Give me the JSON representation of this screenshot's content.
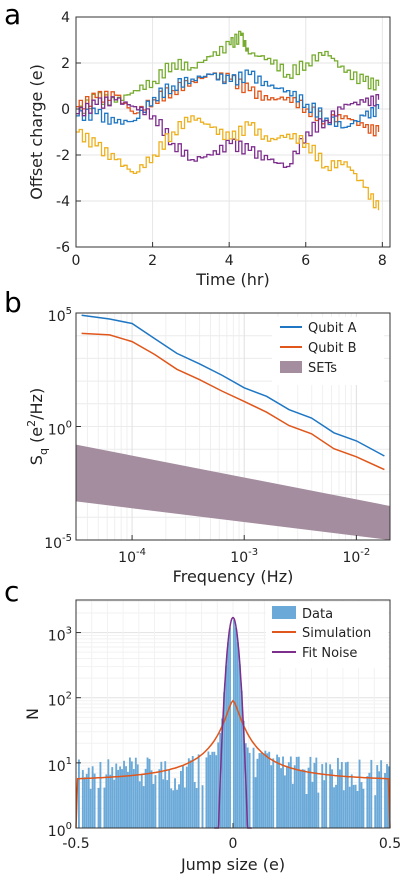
{
  "panel_letters": {
    "a": "a",
    "b": "b",
    "c": "c"
  },
  "colors": {
    "blue": "#1f77c4",
    "orange": "#e0561b",
    "yellow": "#edb120",
    "purple": "#7e2f8e",
    "green": "#77ac30",
    "histogram": "#6aa9d8",
    "sets_band": "#a48d9f"
  },
  "chart_data": [
    {
      "panel": "a",
      "type": "line",
      "xlabel": "Time (hr)",
      "ylabel": "Offset charge (e)",
      "xlim": [
        0,
        8.2
      ],
      "ylim": [
        -6,
        4
      ],
      "xticks": [
        "0",
        "2",
        "4",
        "6",
        "8"
      ],
      "yticks": [
        "4",
        "2",
        "0",
        "-2",
        "-4",
        "-6"
      ],
      "series": [
        {
          "color": "#77ac30",
          "x": [
            0,
            0.5,
            1,
            1.5,
            2,
            2.5,
            3,
            3.5,
            4,
            4.3,
            4.5,
            5,
            5.5,
            6,
            6.5,
            7,
            7.5,
            7.9
          ],
          "y": [
            -0.2,
            0.5,
            0.3,
            0.8,
            1.2,
            2.0,
            1.8,
            2.3,
            2.8,
            3.2,
            2.4,
            2.2,
            1.5,
            2.0,
            2.5,
            1.6,
            1.2,
            1.0
          ]
        },
        {
          "color": "#e0561b",
          "x": [
            0,
            0.5,
            1,
            1.5,
            2,
            2.5,
            3,
            3.5,
            4,
            4.5,
            5,
            5.5,
            6,
            6.5,
            7,
            7.5,
            7.9
          ],
          "y": [
            0.1,
            0.5,
            0.6,
            -0.2,
            0.4,
            0.8,
            1.2,
            1.5,
            1.3,
            0.8,
            0.4,
            0.5,
            0.0,
            -0.5,
            -0.3,
            -0.8,
            -1.0
          ]
        },
        {
          "color": "#1f77c4",
          "x": [
            0,
            0.5,
            1,
            1.5,
            2,
            2.5,
            3,
            3.5,
            4,
            4.5,
            5,
            5.5,
            6,
            6.5,
            7,
            7.5,
            7.9
          ],
          "y": [
            -0.3,
            -0.2,
            -0.6,
            -0.5,
            0.5,
            1.0,
            1.3,
            1.5,
            1.2,
            1.5,
            1.0,
            0.8,
            0.2,
            -0.4,
            -0.8,
            -0.3,
            0.0
          ]
        },
        {
          "color": "#7e2f8e",
          "x": [
            0,
            0.5,
            1,
            1.5,
            2,
            2.5,
            3,
            3.5,
            4,
            4.5,
            5,
            5.5,
            6,
            6.5,
            7,
            7.5,
            7.9
          ],
          "y": [
            -0.2,
            0.2,
            0.4,
            0.1,
            -0.3,
            -1.5,
            -2.2,
            -2.0,
            -1.5,
            -1.8,
            -2.2,
            -2.5,
            -1.0,
            -0.5,
            0.2,
            0.3,
            0.4
          ]
        },
        {
          "color": "#edb120",
          "x": [
            0,
            0.5,
            1,
            1.5,
            2,
            2.5,
            3,
            3.5,
            4,
            4.5,
            5,
            5.5,
            6,
            6.5,
            7,
            7.5,
            7.9
          ],
          "y": [
            -1.0,
            -1.6,
            -2.2,
            -2.8,
            -2.0,
            -1.0,
            -0.3,
            -0.8,
            -1.3,
            -0.7,
            -1.4,
            -1.1,
            -1.5,
            -2.5,
            -2.3,
            -3.4,
            -4.4
          ]
        }
      ]
    },
    {
      "panel": "b",
      "type": "line",
      "xlabel": "Frequency (Hz)",
      "ylabel": "S",
      "ylabel_sub": "q",
      "ylabel_rest_1": " (e",
      "ylabel_sup": "2",
      "ylabel_rest_2": "/Hz)",
      "x_scale": "log",
      "y_scale": "log",
      "xlim_log10": [
        -4.5,
        -1.7
      ],
      "ylim_log10": [
        -5,
        5
      ],
      "xticks": [
        {
          "base": "10",
          "exp": "-4",
          "log": -4
        },
        {
          "base": "10",
          "exp": "-3",
          "log": -3
        },
        {
          "base": "10",
          "exp": "-2",
          "log": -2
        }
      ],
      "yticks": [
        {
          "base": "10",
          "exp": "5",
          "log": 5
        },
        {
          "base": "10",
          "exp": "0",
          "log": 0
        },
        {
          "base": "10",
          "exp": "-5",
          "log": -5
        }
      ],
      "legend": [
        "Qubit A",
        "Qubit B",
        "SETs"
      ],
      "legend_position": "top-right",
      "series": [
        {
          "name": "Qubit A",
          "color": "#1f77c4",
          "log10_x": [
            -4.45,
            -4.2,
            -4.0,
            -3.8,
            -3.6,
            -3.4,
            -3.2,
            -3.0,
            -2.8,
            -2.6,
            -2.4,
            -2.2,
            -2.0,
            -1.75
          ],
          "log10_y": [
            4.9,
            4.7,
            4.6,
            3.8,
            3.3,
            2.7,
            2.3,
            1.7,
            1.3,
            0.8,
            0.3,
            -0.2,
            -0.7,
            -1.3
          ]
        },
        {
          "name": "Qubit B",
          "color": "#e0561b",
          "log10_x": [
            -4.45,
            -4.2,
            -4.0,
            -3.8,
            -3.6,
            -3.4,
            -3.2,
            -3.0,
            -2.8,
            -2.6,
            -2.4,
            -2.2,
            -2.0,
            -1.75
          ],
          "log10_y": [
            4.1,
            4.0,
            3.8,
            3.1,
            2.6,
            2.0,
            1.6,
            1.1,
            0.6,
            0.1,
            -0.4,
            -0.9,
            -1.4,
            -1.9
          ]
        },
        {
          "name": "SETs",
          "type": "band",
          "color": "#a48d9f",
          "log10_x": [
            -4.5,
            -1.7
          ],
          "log10_upper": [
            -0.8,
            -3.5
          ],
          "log10_lower": [
            -3.3,
            -6.2
          ]
        }
      ]
    },
    {
      "panel": "c",
      "type": "bar",
      "xlabel": "Jump size (e)",
      "ylabel": "N",
      "y_scale": "log",
      "xlim": [
        -0.5,
        0.5
      ],
      "ylim_log10": [
        0,
        3.5
      ],
      "xticks": [
        "-0.5",
        "0",
        "0.5"
      ],
      "yticks": [
        {
          "base": "10",
          "exp": "3",
          "log": 3
        },
        {
          "base": "10",
          "exp": "2",
          "log": 2
        },
        {
          "base": "10",
          "exp": "1",
          "log": 1
        },
        {
          "base": "10",
          "exp": "0",
          "log": 0
        }
      ],
      "legend": [
        "Data",
        "Simulation",
        "Fit Noise"
      ],
      "legend_position": "top-right",
      "series": [
        {
          "name": "Data",
          "type": "histogram",
          "color": "#6aa9d8",
          "peak": 1600,
          "background": 6
        },
        {
          "name": "Simulation",
          "color": "#e0561b",
          "x": [
            -0.5,
            -0.49,
            -0.4,
            -0.3,
            -0.2,
            -0.1,
            -0.05,
            -0.02,
            0,
            0.02,
            0.05,
            0.1,
            0.2,
            0.3,
            0.4,
            0.49,
            0.5
          ],
          "y": [
            1,
            5,
            6,
            6,
            7,
            10,
            18,
            50,
            90,
            50,
            18,
            10,
            7,
            6,
            6,
            5,
            1
          ]
        },
        {
          "name": "Fit Noise",
          "color": "#7e2f8e",
          "sigma": 0.012,
          "peak": 1700,
          "center": 0
        }
      ]
    }
  ]
}
